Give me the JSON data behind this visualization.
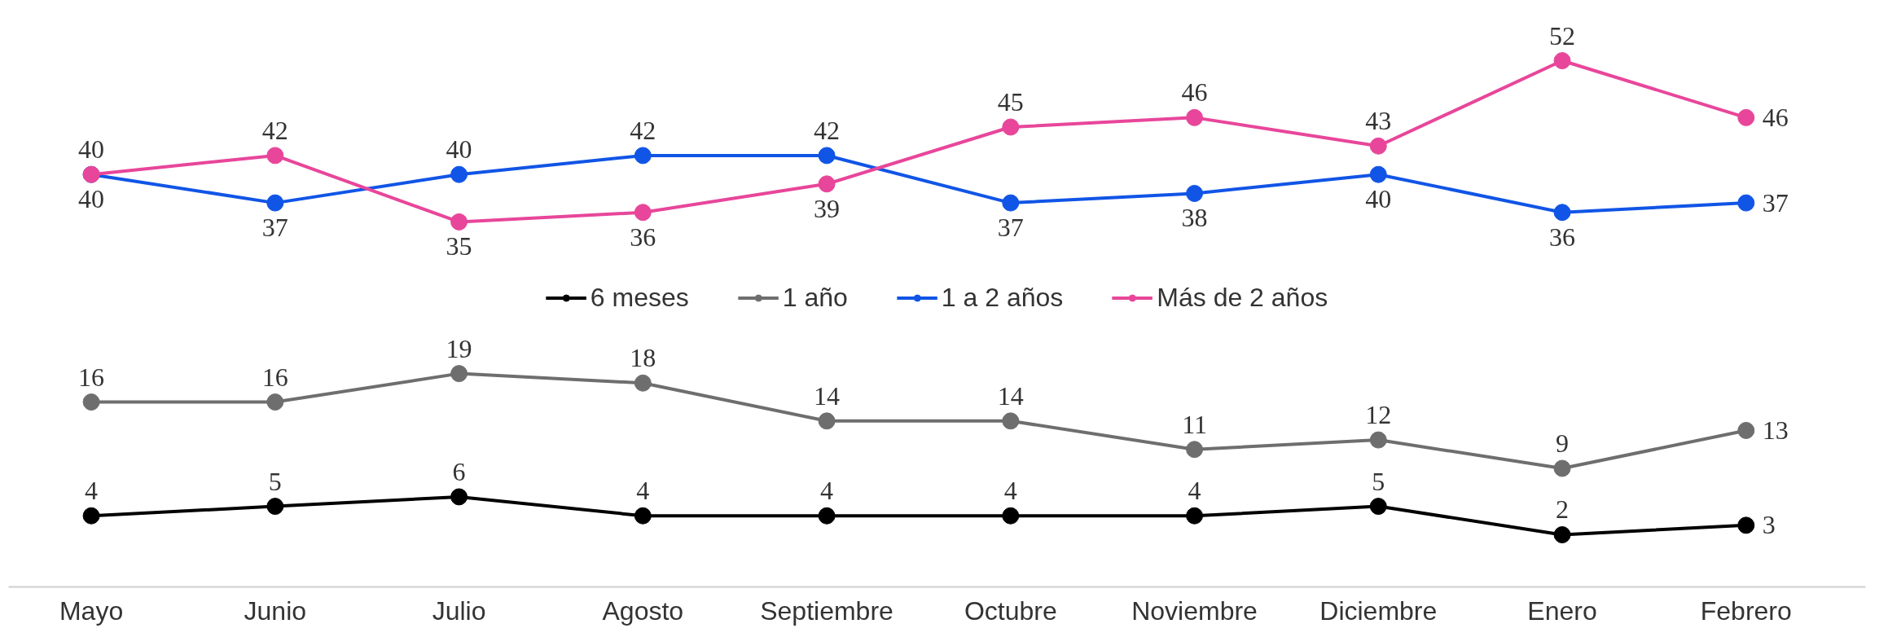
{
  "chart_data": {
    "type": "line",
    "categories": [
      "Mayo",
      "Junio",
      "Julio",
      "Agosto",
      "Septiembre",
      "Octubre",
      "Noviembre",
      "Diciembre",
      "Enero",
      "Febrero"
    ],
    "series": [
      {
        "name": "6 meses",
        "color": "#000000",
        "values": [
          4,
          5,
          6,
          4,
          4,
          4,
          4,
          5,
          2,
          3
        ]
      },
      {
        "name": "1 año",
        "color": "#6e6e6e",
        "values": [
          16,
          16,
          19,
          18,
          14,
          14,
          11,
          12,
          9,
          13
        ]
      },
      {
        "name": "1 a 2 años",
        "color": "#1155e6",
        "values": [
          40,
          37,
          40,
          42,
          42,
          37,
          38,
          40,
          36,
          37
        ]
      },
      {
        "name": "Más de 2 años",
        "color": "#e8469a",
        "values": [
          40,
          42,
          35,
          36,
          39,
          45,
          46,
          43,
          52,
          46
        ]
      }
    ],
    "tick_labels": "x",
    "data_labels": true,
    "marker": "circle",
    "line_style": "solid",
    "grid": false,
    "legend": "center"
  }
}
